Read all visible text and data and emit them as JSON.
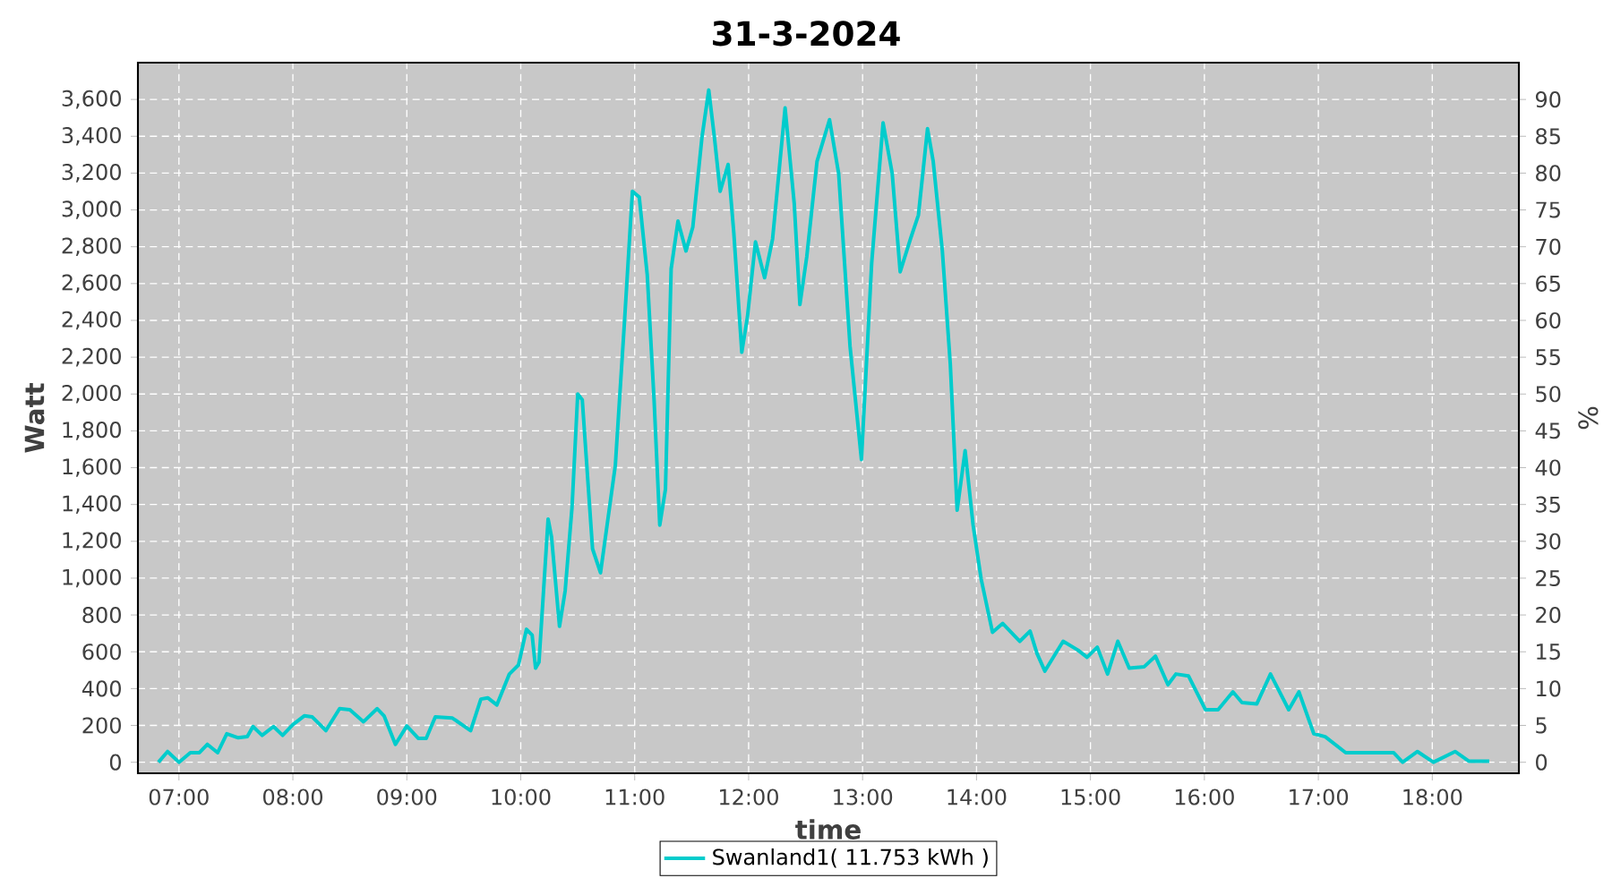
{
  "chart_data": {
    "type": "line",
    "title": "31-3-2024",
    "xlabel": "time",
    "ylabel": "Watt",
    "y2label": "%",
    "xlim": [
      6.64,
      18.76
    ],
    "ylim": [
      -60,
      3800
    ],
    "y2lim": [
      -1.5,
      95
    ],
    "xticks": [
      {
        "value": 7,
        "label": "07:00"
      },
      {
        "value": 8,
        "label": "08:00"
      },
      {
        "value": 9,
        "label": "09:00"
      },
      {
        "value": 10,
        "label": "10:00"
      },
      {
        "value": 11,
        "label": "11:00"
      },
      {
        "value": 12,
        "label": "12:00"
      },
      {
        "value": 13,
        "label": "13:00"
      },
      {
        "value": 14,
        "label": "14:00"
      },
      {
        "value": 15,
        "label": "15:00"
      },
      {
        "value": 16,
        "label": "16:00"
      },
      {
        "value": 17,
        "label": "17:00"
      },
      {
        "value": 18,
        "label": "18:00"
      }
    ],
    "yticks": [
      0,
      200,
      400,
      600,
      800,
      {
        "value": 1000,
        "label": "1,000"
      },
      {
        "value": 1200,
        "label": "1,200"
      },
      {
        "value": 1400,
        "label": "1,400"
      },
      {
        "value": 1600,
        "label": "1,600"
      },
      {
        "value": 1800,
        "label": "1,800"
      },
      {
        "value": 2000,
        "label": "2,000"
      },
      {
        "value": 2200,
        "label": "2,200"
      },
      {
        "value": 2400,
        "label": "2,400"
      },
      {
        "value": 2600,
        "label": "2,600"
      },
      {
        "value": 2800,
        "label": "2,800"
      },
      {
        "value": 3000,
        "label": "3,000"
      },
      {
        "value": 3200,
        "label": "3,200"
      },
      {
        "value": 3400,
        "label": "3,400"
      },
      {
        "value": 3600,
        "label": "3,600"
      }
    ],
    "y2ticks": [
      0,
      5,
      10,
      15,
      20,
      25,
      30,
      35,
      40,
      45,
      50,
      55,
      60,
      65,
      70,
      75,
      80,
      85,
      90
    ],
    "grid": true,
    "legend": "bottom",
    "series": [
      {
        "name": "Swanland1( 11.753 kWh )",
        "color": "#00cccc",
        "x": [
          6.82,
          6.9,
          7.0,
          7.1,
          7.18,
          7.25,
          7.34,
          7.42,
          7.52,
          7.6,
          7.65,
          7.73,
          7.83,
          7.91,
          8.0,
          8.1,
          8.17,
          8.29,
          8.41,
          8.5,
          8.62,
          8.74,
          8.8,
          8.9,
          9.0,
          9.1,
          9.17,
          9.25,
          9.4,
          9.56,
          9.65,
          9.71,
          9.79,
          9.9,
          9.98,
          10.05,
          10.1,
          10.13,
          10.16,
          10.19,
          10.24,
          10.27,
          10.34,
          10.39,
          10.45,
          10.5,
          10.54,
          10.63,
          10.7,
          10.83,
          10.91,
          10.98,
          11.04,
          11.11,
          11.17,
          11.22,
          11.27,
          11.32,
          11.38,
          11.45,
          11.51,
          11.59,
          11.65,
          11.7,
          11.75,
          11.82,
          11.87,
          11.94,
          11.99,
          12.06,
          12.14,
          12.21,
          12.32,
          12.4,
          12.45,
          12.51,
          12.6,
          12.71,
          12.79,
          12.89,
          12.99,
          13.08,
          13.18,
          13.26,
          13.33,
          13.42,
          13.49,
          13.57,
          13.62,
          13.7,
          13.77,
          13.83,
          13.9,
          13.97,
          14.04,
          14.14,
          14.23,
          14.38,
          14.47,
          14.53,
          14.6,
          14.76,
          14.89,
          14.97,
          15.06,
          15.15,
          15.24,
          15.34,
          15.47,
          15.57,
          15.68,
          15.75,
          15.86,
          16.01,
          16.12,
          16.25,
          16.33,
          16.46,
          16.58,
          16.74,
          16.83,
          16.96,
          17.06,
          17.24,
          17.66,
          17.74,
          17.87,
          18.01,
          18.2,
          18.32,
          18.5
        ],
        "values": [
          0,
          58,
          0,
          52,
          52,
          97,
          52,
          155,
          133,
          139,
          194,
          146,
          194,
          146,
          204,
          252,
          246,
          172,
          291,
          285,
          220,
          291,
          252,
          97,
          197,
          130,
          130,
          246,
          240,
          172,
          343,
          350,
          311,
          479,
          528,
          722,
          690,
          511,
          544,
          835,
          1321,
          1224,
          738,
          932,
          1385,
          2000,
          1968,
          1159,
          1029,
          1612,
          2389,
          3101,
          3069,
          2648,
          1968,
          1288,
          1483,
          2680,
          2939,
          2777,
          2907,
          3392,
          3651,
          3392,
          3101,
          3247,
          2874,
          2227,
          2421,
          2826,
          2632,
          2842,
          3554,
          3036,
          2486,
          2745,
          3263,
          3490,
          3198,
          2259,
          1644,
          2713,
          3473,
          3198,
          2664,
          2842,
          2972,
          3441,
          3263,
          2777,
          2162,
          1369,
          1693,
          1288,
          997,
          706,
          754,
          657,
          712,
          592,
          495,
          657,
          609,
          570,
          625,
          479,
          657,
          511,
          518,
          576,
          421,
          479,
          469,
          285,
          285,
          382,
          324,
          317,
          479,
          285,
          382,
          155,
          139,
          52,
          52,
          0,
          58,
          0,
          58,
          6,
          6
        ]
      }
    ]
  }
}
